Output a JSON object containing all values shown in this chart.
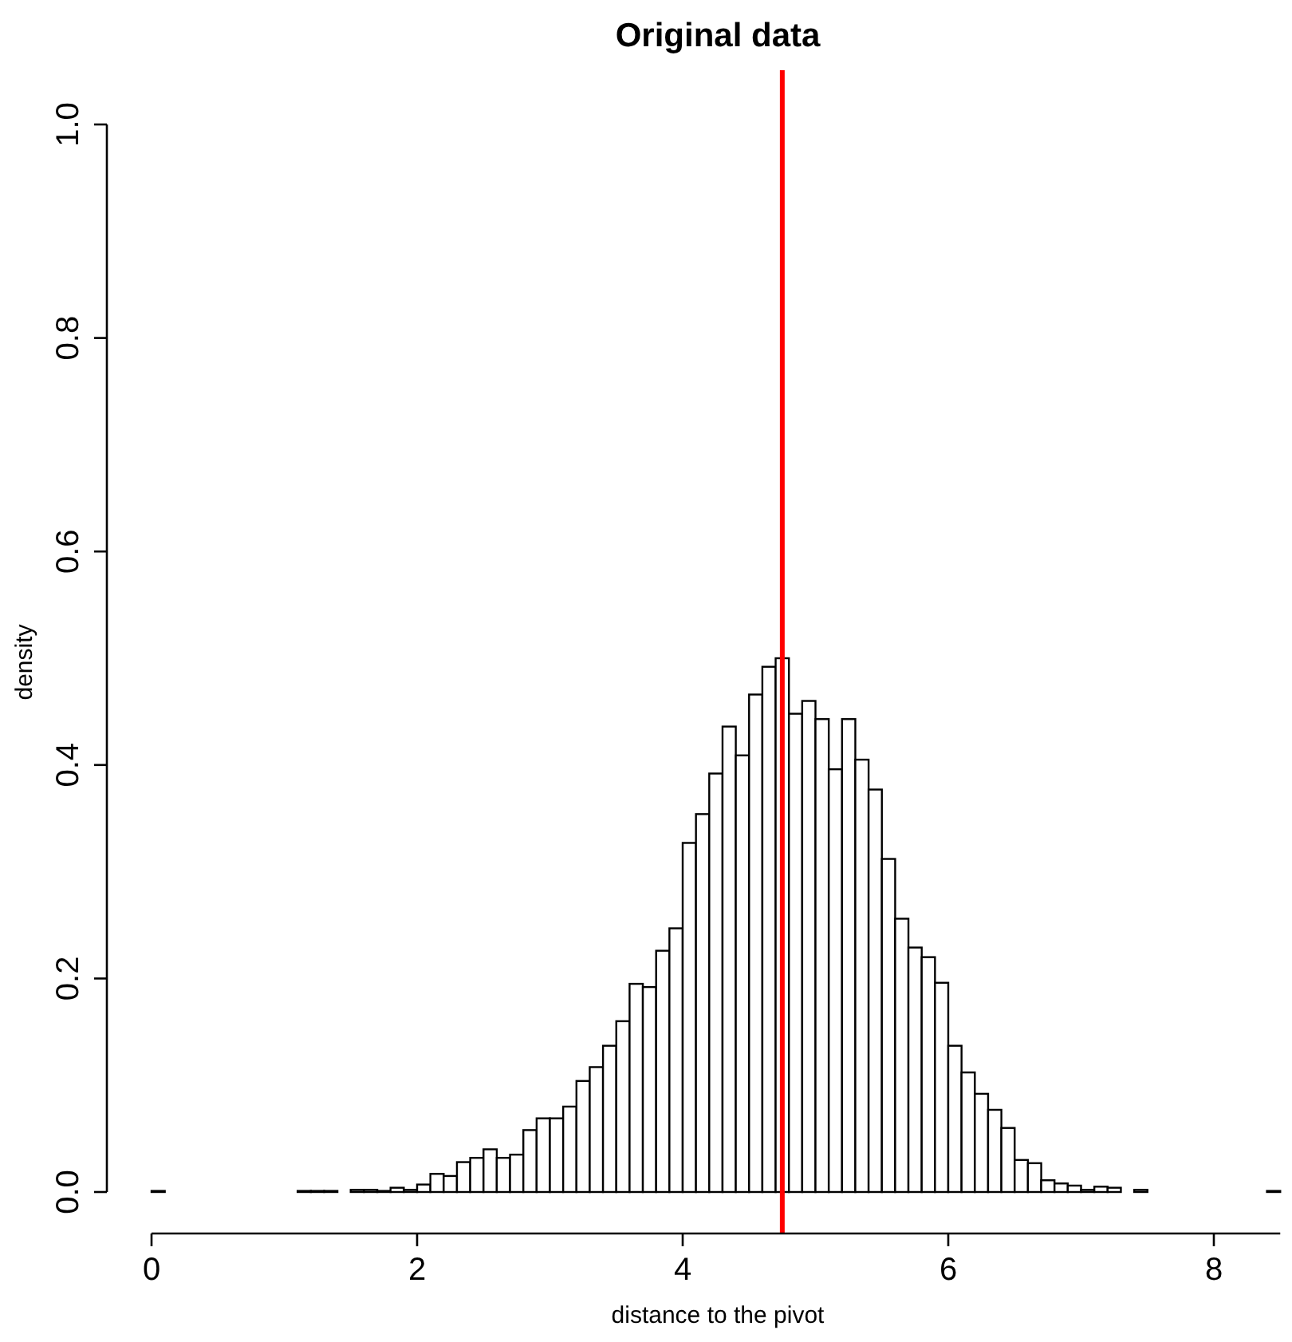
{
  "chart_data": {
    "type": "histogram",
    "title": "Original data",
    "xlabel": "distance to the pivot",
    "ylabel": "density",
    "bins": [
      0,
      0.1,
      0.2,
      0.3,
      0.4,
      0.5,
      0.6,
      0.7,
      0.8,
      0.9,
      1.0,
      1.1,
      1.2,
      1.3,
      1.4,
      1.5,
      1.6,
      1.7,
      1.8,
      1.9,
      2.0,
      2.1,
      2.2,
      2.3,
      2.4,
      2.5,
      2.6,
      2.7,
      2.8,
      2.9,
      3.0,
      3.1,
      3.2,
      3.3,
      3.4,
      3.5,
      3.6,
      3.7,
      3.8,
      3.9,
      4.0,
      4.1,
      4.2,
      4.3,
      4.4,
      4.5,
      4.6,
      4.7,
      4.8,
      4.9,
      5.0,
      5.1,
      5.2,
      5.3,
      5.4,
      5.5,
      5.6,
      5.7,
      5.8,
      5.9,
      6.0,
      6.1,
      6.2,
      6.3,
      6.4,
      6.5,
      6.6,
      6.7,
      6.8,
      6.9,
      7.0,
      7.1,
      7.2,
      7.3,
      7.4,
      7.5,
      7.6,
      7.7,
      7.8,
      7.9,
      8.0,
      8.1,
      8.2,
      8.3,
      8.4,
      8.5
    ],
    "values": [
      0.001,
      0,
      0,
      0,
      0,
      0,
      0,
      0,
      0,
      0,
      0,
      0.001,
      0.001,
      0.001,
      0,
      0.002,
      0.002,
      0.001,
      0.004,
      0.002,
      0.007,
      0.017,
      0.015,
      0.028,
      0.032,
      0.04,
      0.032,
      0.035,
      0.058,
      0.069,
      0.069,
      0.08,
      0.104,
      0.117,
      0.137,
      0.16,
      0.195,
      0.192,
      0.226,
      0.247,
      0.327,
      0.354,
      0.392,
      0.436,
      0.409,
      0.466,
      0.492,
      0.5,
      0.448,
      0.46,
      0.443,
      0.396,
      0.443,
      0.405,
      0.377,
      0.312,
      0.256,
      0.229,
      0.22,
      0.196,
      0.137,
      0.112,
      0.092,
      0.077,
      0.06,
      0.03,
      0.027,
      0.011,
      0.008,
      0.006,
      0.002,
      0.005,
      0.004,
      0,
      0.002,
      0,
      0,
      0,
      0,
      0,
      0,
      0,
      0,
      0,
      0.001
    ],
    "color": "#ffffff",
    "xlim": [
      0,
      8.5
    ],
    "xticks": [
      0,
      2,
      4,
      6,
      8
    ],
    "ylim": [
      0,
      1
    ],
    "yticks": [
      {
        "value": 0,
        "label": "0.0"
      },
      {
        "value": 0.2,
        "label": "0.2"
      },
      {
        "value": 0.4,
        "label": "0.4"
      },
      {
        "value": 0.6,
        "label": "0.6"
      },
      {
        "value": 0.8,
        "label": "0.8"
      },
      {
        "value": 1,
        "label": "1.0"
      }
    ],
    "ref_lines": [
      {
        "axis": "x",
        "value": 4.75,
        "color": "#ff0000"
      }
    ],
    "grid": false
  }
}
